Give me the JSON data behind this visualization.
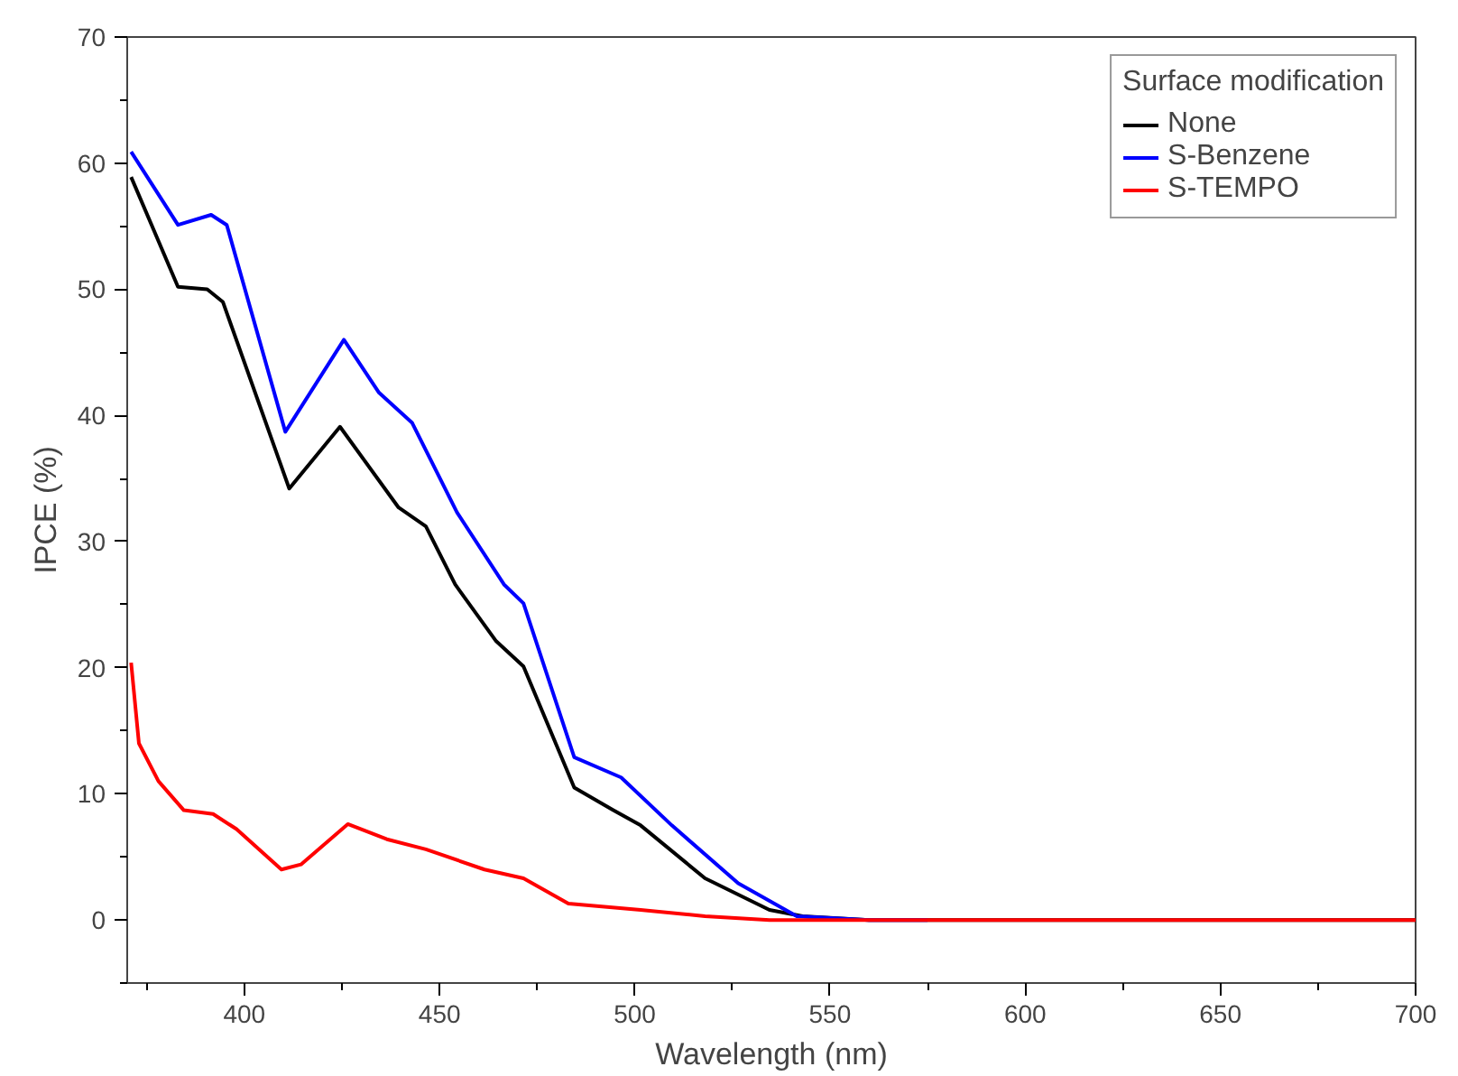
{
  "chart_data": {
    "type": "line",
    "xlabel": "Wavelength (nm)",
    "ylabel": "IPCE (%)",
    "legend_title": "Surface modification",
    "legend": "top right",
    "grid": false,
    "xlim": [
      370,
      700
    ],
    "ylim": [
      -5,
      70
    ],
    "xticks": [
      400,
      450,
      500,
      550,
      600,
      650,
      700
    ],
    "yticks": [
      0,
      10,
      20,
      30,
      40,
      50,
      60,
      70
    ],
    "series": [
      {
        "name": "None",
        "color": "#000000",
        "x": [
          371,
          383,
          390.5,
          394.5,
          411.5,
          424.5,
          439.5,
          446.5,
          454,
          464.5,
          471.5,
          484.5,
          494.5,
          501.5,
          518,
          534.5,
          543,
          560,
          600,
          700
        ],
        "values": [
          58.9,
          50.2,
          50,
          49,
          34.2,
          39.1,
          32.7,
          31.2,
          26.6,
          22.1,
          20.1,
          10.5,
          8.7,
          7.5,
          3.3,
          0.8,
          0.3,
          0,
          0,
          0
        ]
      },
      {
        "name": "S-Benzene",
        "color": "#0000ff",
        "x": [
          371,
          383,
          391.5,
          395.5,
          410.5,
          425.5,
          434.5,
          443,
          454.5,
          466.5,
          471.5,
          484.5,
          496.5,
          509.5,
          526.5,
          541.5,
          560,
          575
        ],
        "values": [
          60.9,
          55.1,
          55.9,
          55.1,
          38.7,
          46,
          41.8,
          39.4,
          32.3,
          26.6,
          25.1,
          12.9,
          11.3,
          7.5,
          2.9,
          0.3,
          0,
          0
        ]
      },
      {
        "name": "S-TEMPO",
        "color": "#ff0000",
        "x": [
          371,
          373,
          378,
          384.5,
          392,
          398,
          409.5,
          414.5,
          426.5,
          436.5,
          446.5,
          461.5,
          471.5,
          483,
          501.5,
          518,
          534.5,
          600,
          700
        ],
        "values": [
          20.4,
          14,
          11,
          8.7,
          8.4,
          7.2,
          4,
          4.4,
          7.6,
          6.4,
          5.6,
          4,
          3.3,
          1.3,
          0.8,
          0.3,
          0,
          0,
          0
        ]
      }
    ]
  }
}
